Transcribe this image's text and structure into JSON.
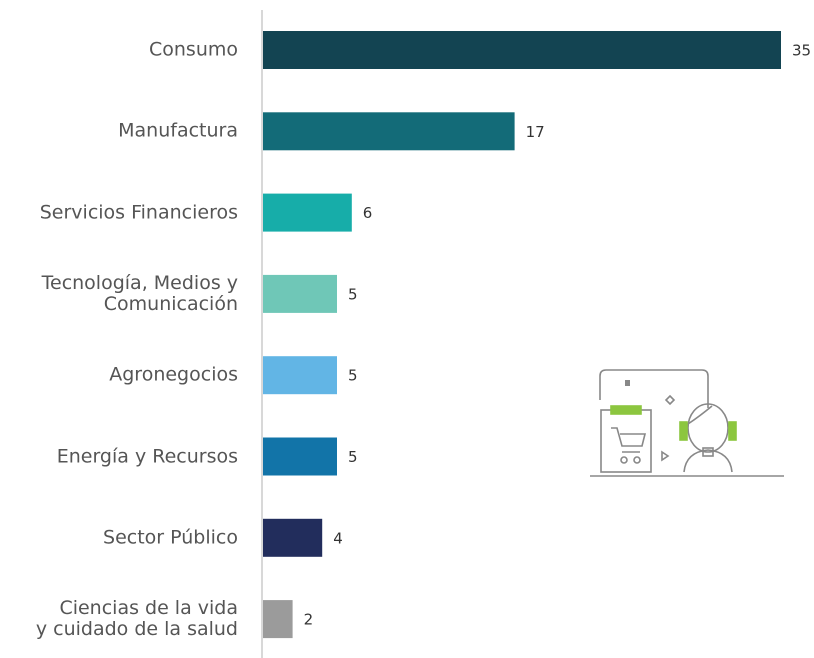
{
  "chart_data": {
    "type": "bar",
    "orientation": "horizontal",
    "categories": [
      "Consumo",
      "Manufactura",
      "Servicios Financieros",
      "Tecnología, Medios y\nComunicación",
      "Agronegocios",
      "Energía y Recursos",
      "Sector Público",
      "Ciencias de la vida\ny cuidado de la salud"
    ],
    "values": [
      35,
      17,
      6,
      5,
      5,
      5,
      4,
      2
    ],
    "colors": [
      "#134452",
      "#136b78",
      "#17ada9",
      "#6fc7b7",
      "#62b5e5",
      "#1274a8",
      "#222d5c",
      "#9b9b9b"
    ]
  }
}
